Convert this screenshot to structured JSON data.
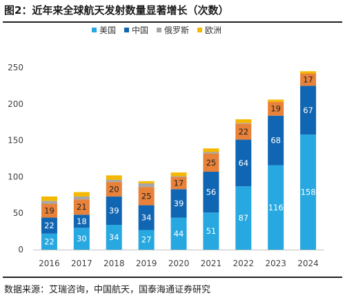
{
  "header": {
    "title": "图2：近年来全球航天发射数量显著增长（次数）"
  },
  "footer": {
    "source": "数据来源：艾瑞咨询，中国航天，国泰海通证券研究"
  },
  "colors": {
    "美国": "#27a8e0",
    "中国": "#1166b3",
    "俄罗斯": "#a6a6a6",
    "欧洲": "#f5b800",
    "other": "#e8823a"
  },
  "chart_data": {
    "type": "bar",
    "stacked": true,
    "categories": [
      "2016",
      "2017",
      "2018",
      "2019",
      "2020",
      "2021",
      "2022",
      "2023",
      "2024"
    ],
    "series": [
      {
        "name": "美国",
        "values": [
          22,
          30,
          34,
          27,
          44,
          51,
          87,
          116,
          158
        ]
      },
      {
        "name": "中国",
        "values": [
          22,
          18,
          39,
          34,
          39,
          56,
          64,
          68,
          67
        ]
      },
      {
        "name": "",
        "values": [
          19,
          21,
          20,
          25,
          17,
          25,
          22,
          19,
          17
        ]
      },
      {
        "name": "俄罗斯",
        "values": [
          4,
          4,
          3,
          5,
          1,
          2,
          1,
          0,
          0
        ]
      },
      {
        "name": "欧洲",
        "values": [
          6,
          6,
          6,
          3,
          5,
          5,
          5,
          3,
          3
        ]
      }
    ],
    "legend": [
      "美国",
      "中国",
      "俄罗斯",
      "欧洲"
    ],
    "legend_position": "top",
    "ylim": [
      0,
      250
    ],
    "yticks": [
      0,
      50,
      100,
      150,
      200,
      250
    ],
    "grid": false,
    "xlabel": "",
    "ylabel": ""
  }
}
